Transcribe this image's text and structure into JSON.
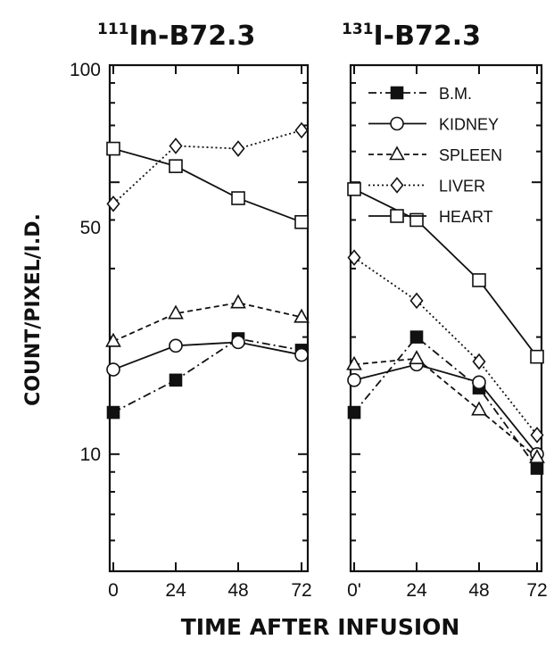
{
  "chart_data": [
    {
      "type": "line",
      "title_sup": "111",
      "title_main": "In-B72.3",
      "x": [
        0,
        24,
        48,
        72
      ],
      "x_tick_labels": [
        "0",
        "24",
        "48",
        "72"
      ],
      "xlabel": "TIME AFTER INFUSION",
      "ylabel": "COUNT/PIXEL/I.D.",
      "y_scale": "log",
      "ylim": [
        5,
        100
      ],
      "y_tick_labels": [
        "100",
        "50",
        "10"
      ],
      "series": [
        {
          "name": "B.M.",
          "values": [
            12.8,
            15.5,
            19.8,
            18.5
          ],
          "marker": "filled-square",
          "dash": "dash-dot"
        },
        {
          "name": "KIDNEY",
          "values": [
            16.5,
            19.0,
            19.4,
            18.0
          ],
          "marker": "circle",
          "dash": "solid"
        },
        {
          "name": "SPLEEN",
          "values": [
            19.5,
            23.0,
            24.5,
            22.5
          ],
          "marker": "triangle",
          "dash": "dashed"
        },
        {
          "name": "LIVER",
          "values": [
            44.0,
            62.0,
            61.0,
            68.0
          ],
          "marker": "diamond",
          "dash": "dotted"
        },
        {
          "name": "HEART",
          "values": [
            61.0,
            55.0,
            45.5,
            39.5
          ],
          "marker": "square",
          "dash": "solid"
        }
      ]
    },
    {
      "type": "line",
      "title_sup": "131",
      "title_main": "I-B72.3",
      "x": [
        0,
        24,
        48,
        72
      ],
      "x_tick_labels": [
        "0'",
        "24",
        "48",
        "72"
      ],
      "xlabel": "TIME AFTER INFUSION",
      "ylabel": "COUNT/PIXEL/I.D.",
      "y_scale": "log",
      "ylim": [
        5,
        100
      ],
      "legend": "top-right",
      "series": [
        {
          "name": "B.M.",
          "values": [
            12.8,
            20.0,
            14.8,
            9.2
          ],
          "marker": "filled-square",
          "dash": "dash-dot"
        },
        {
          "name": "KIDNEY",
          "values": [
            15.5,
            17.0,
            15.3,
            10.0
          ],
          "marker": "circle",
          "dash": "solid"
        },
        {
          "name": "SPLEEN",
          "values": [
            17.0,
            17.6,
            13.0,
            9.8
          ],
          "marker": "triangle",
          "dash": "dashed"
        },
        {
          "name": "LIVER",
          "values": [
            32.0,
            24.8,
            17.3,
            11.2
          ],
          "marker": "diamond",
          "dash": "dotted"
        },
        {
          "name": "HEART",
          "values": [
            48.0,
            40.0,
            28.0,
            17.8
          ],
          "marker": "square",
          "dash": "solid"
        }
      ]
    }
  ]
}
